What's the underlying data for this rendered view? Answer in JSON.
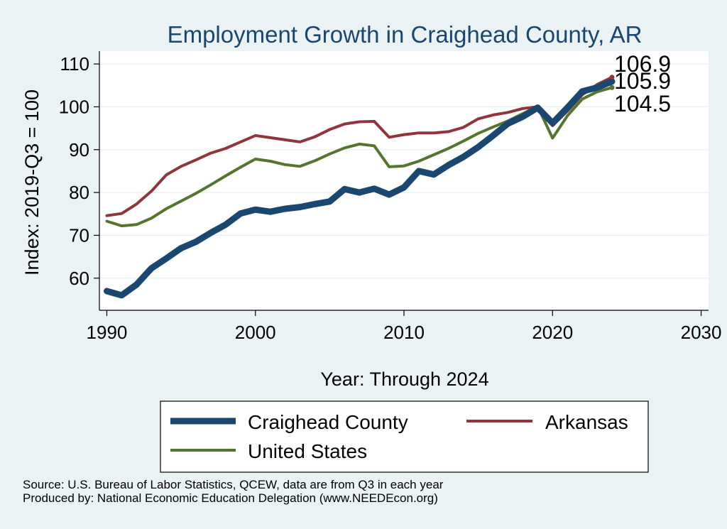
{
  "chart_data": {
    "type": "line",
    "title": "Employment Growth in Craighead County, AR",
    "xlabel": "Year: Through 2024",
    "ylabel": "Index: 2019-Q3 = 100",
    "xlim": [
      1989.5,
      2030.5
    ],
    "ylim": [
      52.5,
      113
    ],
    "xticks": [
      1990,
      2000,
      2010,
      2020,
      2030
    ],
    "yticks": [
      60,
      70,
      80,
      90,
      100,
      110
    ],
    "grid": true,
    "legend_position": "bottom",
    "x": [
      1990,
      1991,
      1992,
      1993,
      1994,
      1995,
      1996,
      1997,
      1998,
      1999,
      2000,
      2001,
      2002,
      2003,
      2004,
      2005,
      2006,
      2007,
      2008,
      2009,
      2010,
      2011,
      2012,
      2013,
      2014,
      2015,
      2016,
      2017,
      2018,
      2019,
      2020,
      2021,
      2022,
      2023,
      2024
    ],
    "series": [
      {
        "name": "Craighead  County",
        "color": "#1a476f",
        "values": [
          57.0,
          56.0,
          58.5,
          62.3,
          64.6,
          67.0,
          68.5,
          70.6,
          72.5,
          75.1,
          76.0,
          75.5,
          76.2,
          76.6,
          77.3,
          77.9,
          80.8,
          80.0,
          80.9,
          79.5,
          81.2,
          85.0,
          84.2,
          86.4,
          88.3,
          90.6,
          93.3,
          96.1,
          97.7,
          99.8,
          96.2,
          99.8,
          103.6,
          104.5,
          105.9
        ]
      },
      {
        "name": "Arkansas",
        "color": "#90353b",
        "values": [
          74.6,
          75.1,
          77.3,
          80.3,
          84.1,
          86.1,
          87.6,
          89.2,
          90.3,
          91.8,
          93.3,
          92.8,
          92.3,
          91.8,
          93.0,
          94.7,
          96.0,
          96.5,
          96.6,
          92.9,
          93.5,
          93.9,
          93.9,
          94.2,
          95.2,
          97.2,
          98.1,
          98.7,
          99.6,
          100.0,
          95.6,
          99.0,
          102.8,
          105.2,
          106.9
        ]
      },
      {
        "name": "United States",
        "color": "#55752f",
        "values": [
          73.3,
          72.2,
          72.5,
          74.0,
          76.2,
          78.0,
          79.8,
          81.8,
          83.9,
          85.9,
          87.8,
          87.3,
          86.5,
          86.1,
          87.4,
          89.0,
          90.4,
          91.3,
          90.9,
          86.0,
          86.2,
          87.3,
          88.8,
          90.3,
          92.0,
          93.8,
          95.3,
          96.7,
          98.4,
          100.1,
          92.7,
          97.9,
          101.8,
          103.5,
          104.5
        ]
      }
    ],
    "end_labels": [
      "106.9",
      "105.9",
      "104.5"
    ]
  },
  "footer": {
    "source": "Source: U.S. Bureau of Labor Statistics, QCEW, data are from Q3 in each year",
    "produced_by": "Produced by: National Economic Education Delegation (www.NEEDEcon.org)"
  },
  "colors": {
    "background": "#eaf2f3",
    "plot_background": "#ffffff",
    "title": "#1a476f",
    "grid": "#eaf2f3"
  }
}
